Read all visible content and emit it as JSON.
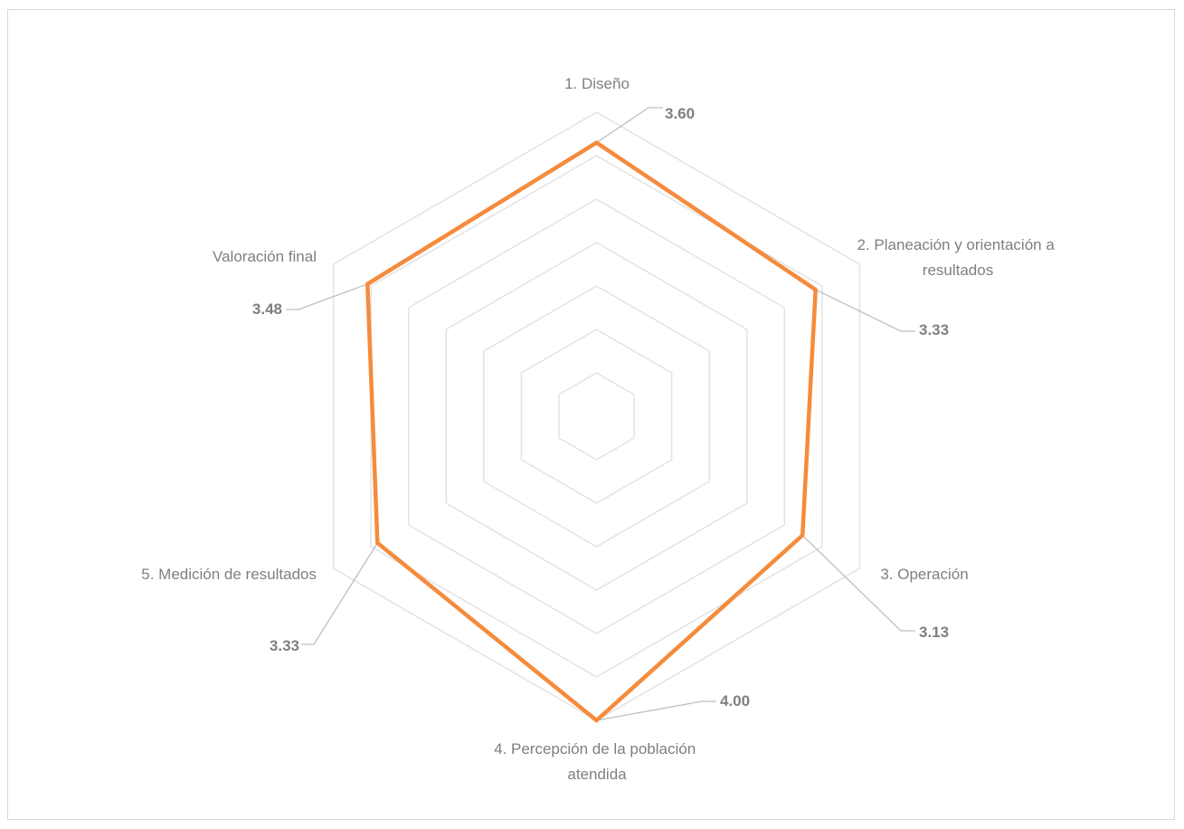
{
  "chart_data": {
    "type": "radar",
    "title": "",
    "categories": [
      {
        "label_lines": [
          "1. Diseño"
        ],
        "value_label": "3.60"
      },
      {
        "label_lines": [
          "2. Planeación y orientación a",
          "resultados"
        ],
        "value_label": "3.33"
      },
      {
        "label_lines": [
          "3. Operación"
        ],
        "value_label": "3.13"
      },
      {
        "label_lines": [
          "4. Percepción de la población",
          "atendida"
        ],
        "value_label": "4.00"
      },
      {
        "label_lines": [
          "5. Medición de resultados"
        ],
        "value_label": "3.33"
      },
      {
        "label_lines": [
          "Valoración final"
        ],
        "value_label": "3.48"
      }
    ],
    "series": [
      {
        "values": [
          3.6,
          3.33,
          3.13,
          4.0,
          3.33,
          3.48
        ],
        "color": "#f58b3c"
      }
    ],
    "axis_range": [
      0,
      4
    ],
    "gridlines": 7,
    "legend": "none",
    "grid_color": "#e3e3e3",
    "leader_color": "#bfbfbf",
    "text_color": "#7f7f7f"
  }
}
